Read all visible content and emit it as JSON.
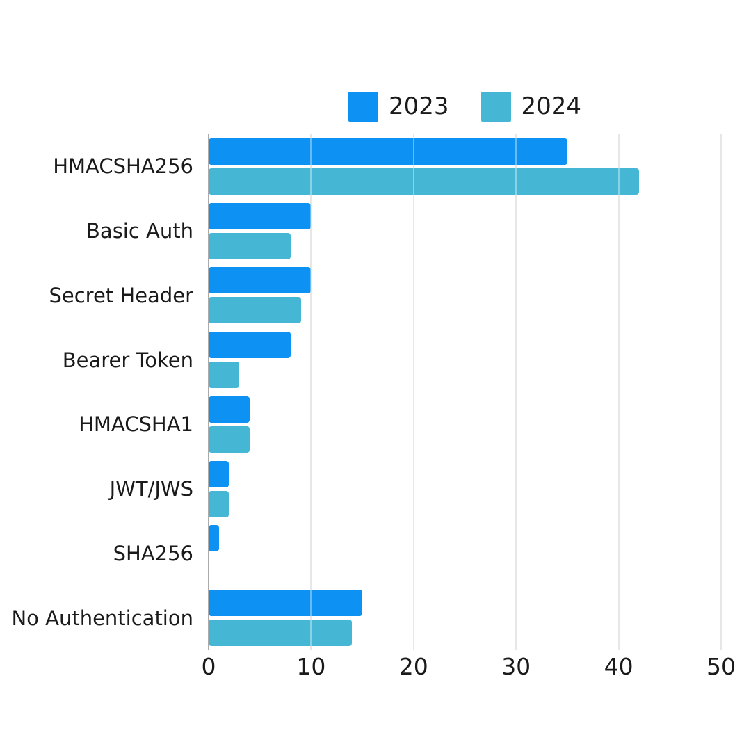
{
  "chart_data": {
    "type": "bar",
    "orientation": "horizontal",
    "title": "",
    "categories": [
      "HMACSHA256",
      "Basic Auth",
      "Secret Header",
      "Bearer Token",
      "HMACSHA1",
      "JWT/JWS",
      "SHA256",
      "No Authentication"
    ],
    "series": [
      {
        "name": "2023",
        "color": "#0d91f2",
        "values": [
          35,
          10,
          10,
          8,
          4,
          2,
          1,
          15
        ]
      },
      {
        "name": "2024",
        "color": "#45b7d5",
        "values": [
          42,
          8,
          9,
          3,
          4,
          2,
          0,
          14
        ]
      }
    ],
    "xlim": [
      0,
      50
    ],
    "xticks": [
      0,
      10,
      20,
      30,
      40,
      50
    ],
    "grid": true,
    "legend_position": "top",
    "background_color": "#ffffff",
    "gridline_color": "#d8d8d8",
    "axis_line_color": "#ababab",
    "text_color": "#1a1a1a"
  }
}
